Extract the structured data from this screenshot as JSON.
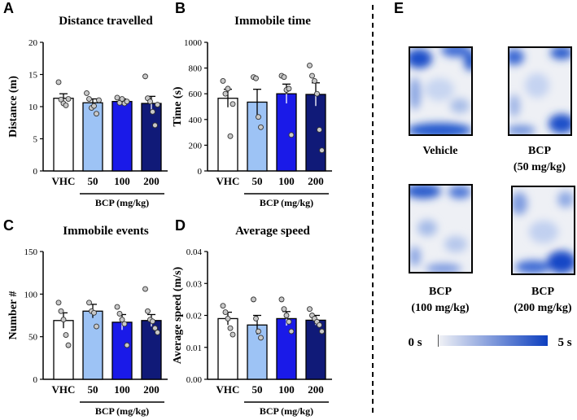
{
  "colors": {
    "vhc": "#ffffff",
    "bcp50": "#9dc3f5",
    "bcp100": "#1a1ae8",
    "bcp200": "#101a78",
    "heat_low": "#eef0f4",
    "heat_high": "#0d3fbf"
  },
  "panels": {
    "A": "A",
    "B": "B",
    "C": "C",
    "D": "D",
    "E": "E"
  },
  "chart_data": [
    {
      "id": "A",
      "type": "bar",
      "title": "Distance travelled",
      "ylabel": "Distance (m)",
      "ylim": [
        0,
        20
      ],
      "yticks": [
        "0",
        "5",
        "10",
        "15",
        "20"
      ],
      "categories": [
        "VHC",
        "50",
        "100",
        "200"
      ],
      "group_label": "BCP (mg/kg)",
      "values": [
        11.3,
        10.6,
        10.8,
        10.5
      ],
      "errors": [
        0.7,
        0.6,
        0.4,
        1.1
      ],
      "points": [
        [
          13.8,
          11.1,
          10.5,
          10.2,
          11.2
        ],
        [
          12.1,
          11.2,
          9.8,
          10.1,
          8.9,
          11.0
        ],
        [
          11.4,
          10.6,
          11.2,
          10.5,
          10.8
        ],
        [
          14.7,
          11.3,
          10.8,
          9.2,
          7.1,
          10.3
        ]
      ]
    },
    {
      "id": "B",
      "type": "bar",
      "title": "Immobile time",
      "ylabel": "Time (s)",
      "ylim": [
        0,
        1000
      ],
      "yticks": [
        "0",
        "200",
        "400",
        "600",
        "800",
        "1000"
      ],
      "categories": [
        "VHC",
        "50",
        "100",
        "200"
      ],
      "group_label": "BCP (mg/kg)",
      "values": [
        565,
        535,
        600,
        595
      ],
      "errors": [
        70,
        100,
        75,
        90
      ],
      "points": [
        [
          700,
          600,
          640,
          270,
          520
        ],
        [
          730,
          720,
          420,
          340
        ],
        [
          740,
          730,
          630,
          640,
          280
        ],
        [
          820,
          740,
          700,
          600,
          320,
          160
        ]
      ]
    },
    {
      "id": "C",
      "type": "bar",
      "title": "Immobile events",
      "ylabel": "Number #",
      "ylim": [
        0,
        150
      ],
      "yticks": [
        "0",
        "50",
        "100",
        "150"
      ],
      "categories": [
        "VHC",
        "50",
        "100",
        "200"
      ],
      "group_label": "BCP (mg/kg)",
      "values": [
        69,
        80,
        67,
        69
      ],
      "errors": [
        9,
        8,
        9,
        7
      ],
      "points": [
        [
          90,
          80,
          70,
          52,
          40
        ],
        [
          90,
          80,
          78,
          62
        ],
        [
          85,
          77,
          70,
          65,
          40
        ],
        [
          106,
          80,
          70,
          68,
          60,
          55
        ]
      ]
    },
    {
      "id": "D",
      "type": "bar",
      "title": "Average speed",
      "ylabel": "Average speed (m/s)",
      "ylim": [
        0,
        0.04
      ],
      "yticks": [
        "0.00",
        "0.01",
        "0.02",
        "0.03",
        "0.04"
      ],
      "categories": [
        "VHC",
        "50",
        "100",
        "200"
      ],
      "group_label": "BCP (mg/kg)",
      "values": [
        0.019,
        0.017,
        0.019,
        0.0185
      ],
      "errors": [
        0.002,
        0.003,
        0.0022,
        0.0015
      ],
      "points": [
        [
          0.023,
          0.021,
          0.019,
          0.016,
          0.014
        ],
        [
          0.025,
          0.019,
          0.015,
          0.013
        ],
        [
          0.025,
          0.022,
          0.02,
          0.018,
          0.015
        ],
        [
          0.022,
          0.02,
          0.019,
          0.018,
          0.017,
          0.015
        ]
      ]
    },
    {
      "id": "E",
      "type": "heatmap",
      "tiles": [
        {
          "name": "heatmap-vehicle",
          "label1": "Vehicle",
          "label2": ""
        },
        {
          "name": "heatmap-bcp50",
          "label1": "BCP",
          "label2": "(50 mg/kg)"
        },
        {
          "name": "heatmap-bcp100",
          "label1": "BCP",
          "label2": "(100 mg/kg)"
        },
        {
          "name": "heatmap-bcp200",
          "label1": "BCP",
          "label2": "(200 mg/kg)"
        }
      ],
      "colorbar": {
        "min_label": "0 s",
        "max_label": "5 s"
      }
    }
  ]
}
